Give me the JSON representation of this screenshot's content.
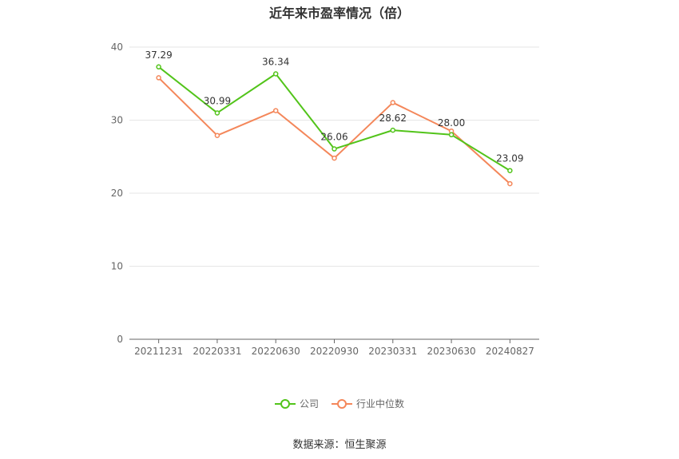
{
  "chart_data": {
    "type": "line",
    "title": "近年来市盈率情况（倍）",
    "categories": [
      "20211231",
      "20220331",
      "20220630",
      "20220930",
      "20230331",
      "20230630",
      "20240827"
    ],
    "series": [
      {
        "name": "公司",
        "color": "#52c41a",
        "values": [
          37.29,
          30.99,
          36.34,
          26.06,
          28.62,
          28.0,
          23.09
        ],
        "labels": [
          "37.29",
          "30.99",
          "36.34",
          "26.06",
          "28.62",
          "28.00",
          "23.09"
        ]
      },
      {
        "name": "行业中位数",
        "color": "#f4875a",
        "values": [
          35.8,
          27.9,
          31.3,
          24.8,
          32.4,
          28.5,
          21.3
        ]
      }
    ],
    "yticks": [
      "0",
      "10",
      "20",
      "30",
      "40"
    ],
    "ylim": [
      0,
      40
    ],
    "grid": true,
    "legend_position": "bottom"
  },
  "source_text": "数据来源：恒生聚源"
}
